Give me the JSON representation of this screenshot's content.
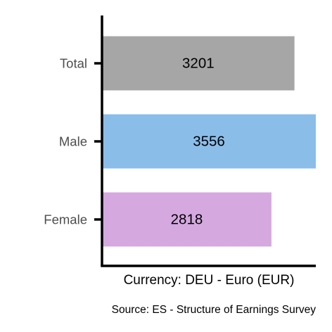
{
  "chart_data": {
    "type": "bar",
    "orientation": "horizontal",
    "categories": [
      "Total",
      "Male",
      "Female"
    ],
    "values": [
      3201,
      3556,
      2818
    ],
    "data_labels": [
      "3201",
      "3556",
      "2818"
    ],
    "colors": [
      "#a6a6a6",
      "#8bbde9",
      "#d5a8e0"
    ],
    "title": "",
    "xlabel": "Currency: DEU - Euro (EUR)",
    "ylabel": "",
    "xlim": [
      0,
      3556
    ],
    "grid": false,
    "legend": "none",
    "caption": "Source:  ES - Structure of Earnings Survey"
  }
}
